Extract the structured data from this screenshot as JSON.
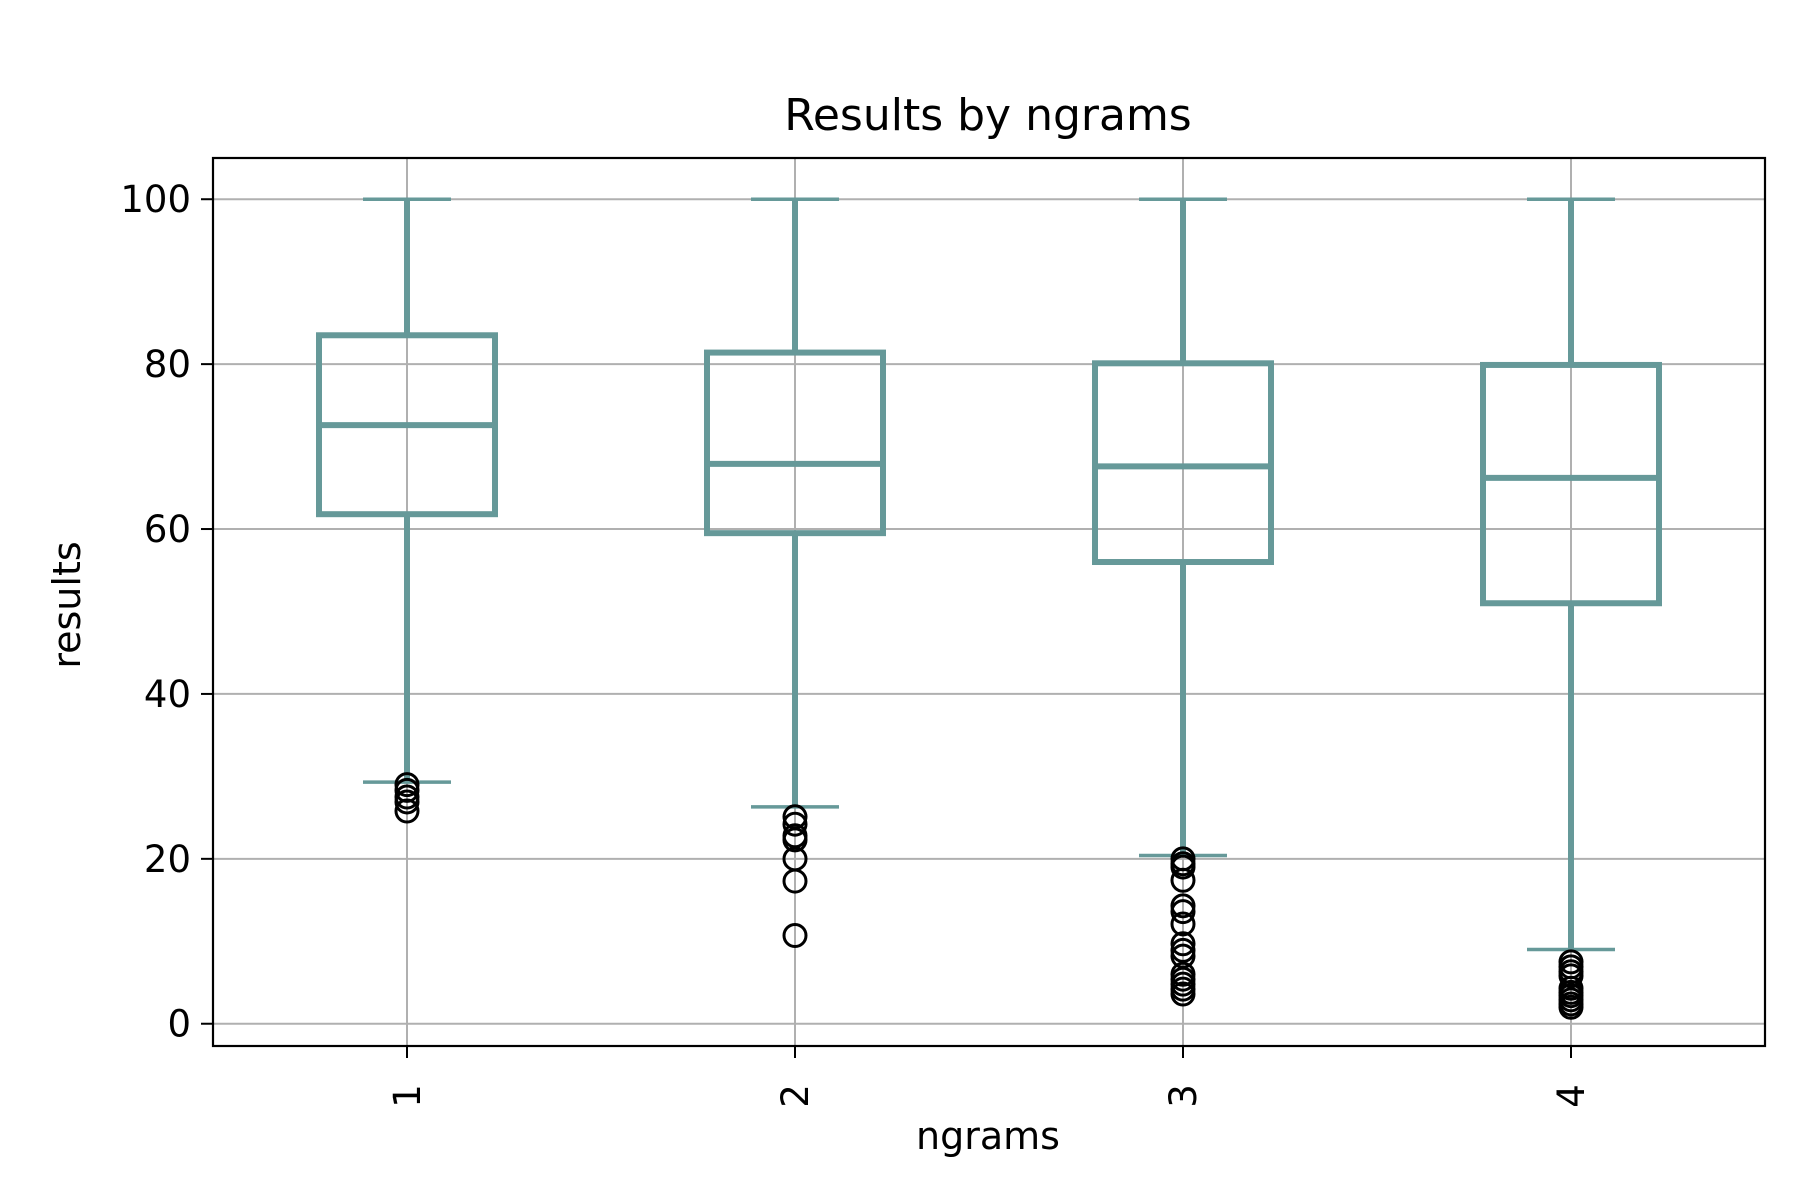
{
  "chart_data": {
    "type": "box",
    "title": "Results by ngrams",
    "xlabel": "ngrams",
    "ylabel": "results",
    "ylim": [
      -2.7,
      105
    ],
    "yticks": [
      0,
      20,
      40,
      60,
      80,
      100
    ],
    "grid": true,
    "colors": {
      "box": "#669999",
      "outlier": "#000000",
      "grid": "#b0b0b0"
    },
    "categories": [
      "1",
      "2",
      "3",
      "4"
    ],
    "boxes": [
      {
        "category": "1",
        "whisker_low": 29.3,
        "q1": 61.8,
        "median": 72.6,
        "q3": 83.5,
        "whisker_high": 100,
        "outliers": [
          29.0,
          28.3,
          27.5,
          26.9,
          25.8
        ]
      },
      {
        "category": "2",
        "whisker_low": 26.3,
        "q1": 59.5,
        "median": 67.9,
        "q3": 81.4,
        "whisker_high": 100,
        "outliers": [
          25.1,
          24.2,
          22.8,
          22.3,
          20.0,
          17.3,
          10.7
        ]
      },
      {
        "category": "3",
        "whisker_low": 20.4,
        "q1": 56.0,
        "median": 67.6,
        "q3": 80.1,
        "whisker_high": 100,
        "outliers": [
          20.0,
          19.4,
          19.0,
          17.4,
          14.3,
          13.6,
          12.1,
          9.7,
          8.9,
          8.2,
          6.0,
          5.4,
          4.8,
          4.2,
          3.6
        ]
      },
      {
        "category": "4",
        "whisker_low": 9.0,
        "q1": 51.0,
        "median": 66.2,
        "q3": 79.9,
        "whisker_high": 100,
        "outliers": [
          7.5,
          6.9,
          6.3,
          5.8,
          4.3,
          3.8,
          3.4,
          2.9,
          2.4,
          2.0
        ]
      }
    ]
  }
}
